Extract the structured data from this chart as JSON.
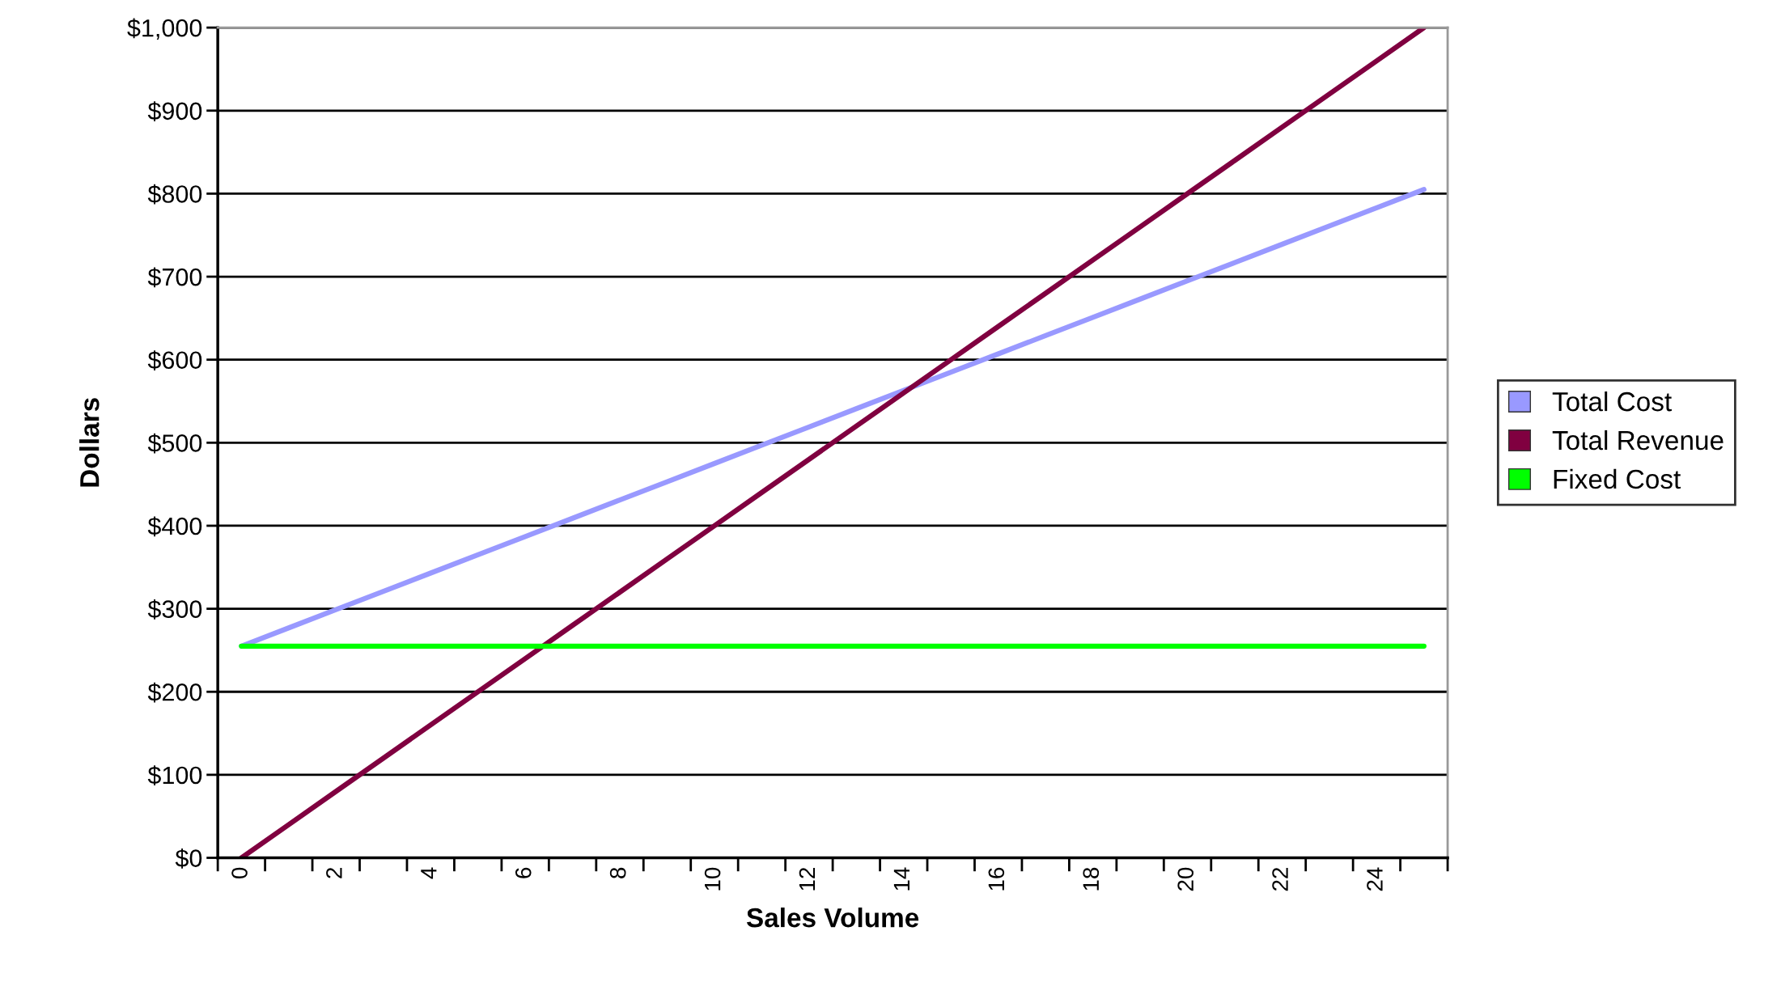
{
  "chart_data": {
    "type": "line",
    "xlabel": "Sales Volume",
    "ylabel": "Dollars",
    "categories": [
      "0",
      null,
      "2",
      null,
      "4",
      null,
      "6",
      null,
      "8",
      null,
      "10",
      null,
      "12",
      null,
      "14",
      null,
      "16",
      null,
      "18",
      null,
      "20",
      null,
      "22",
      null,
      "24",
      null
    ],
    "series": [
      {
        "name": "Total Cost",
        "color": "#9999ff",
        "values": [
          255,
          277,
          299,
          321,
          343,
          365,
          387,
          409,
          431,
          453,
          475,
          497,
          519,
          541,
          563,
          585,
          607,
          629,
          651,
          673,
          695,
          717,
          739,
          761,
          783,
          805
        ]
      },
      {
        "name": "Total Revenue",
        "color": "#800040",
        "values": [
          0,
          40,
          80,
          120,
          160,
          200,
          240,
          280,
          320,
          360,
          400,
          440,
          480,
          520,
          560,
          600,
          640,
          680,
          720,
          760,
          800,
          840,
          880,
          920,
          960,
          1000
        ]
      },
      {
        "name": "Fixed Cost",
        "color": "#00ff00",
        "values": [
          255,
          255,
          255,
          255,
          255,
          255,
          255,
          255,
          255,
          255,
          255,
          255,
          255,
          255,
          255,
          255,
          255,
          255,
          255,
          255,
          255,
          255,
          255,
          255,
          255,
          255
        ]
      }
    ],
    "ylim": [
      0,
      1000
    ],
    "yticks": [
      {
        "value": 0,
        "label": "$0"
      },
      {
        "value": 100,
        "label": "$100"
      },
      {
        "value": 200,
        "label": "$200"
      },
      {
        "value": 300,
        "label": "$300"
      },
      {
        "value": 400,
        "label": "$400"
      },
      {
        "value": 500,
        "label": "$500"
      },
      {
        "value": 600,
        "label": "$600"
      },
      {
        "value": 700,
        "label": "$700"
      },
      {
        "value": 800,
        "label": "$800"
      },
      {
        "value": 900,
        "label": "$900"
      },
      {
        "value": 1000,
        "label": "$1,000"
      }
    ],
    "grid": "y",
    "legend": "right",
    "marker": "none",
    "line_style": "solid"
  }
}
